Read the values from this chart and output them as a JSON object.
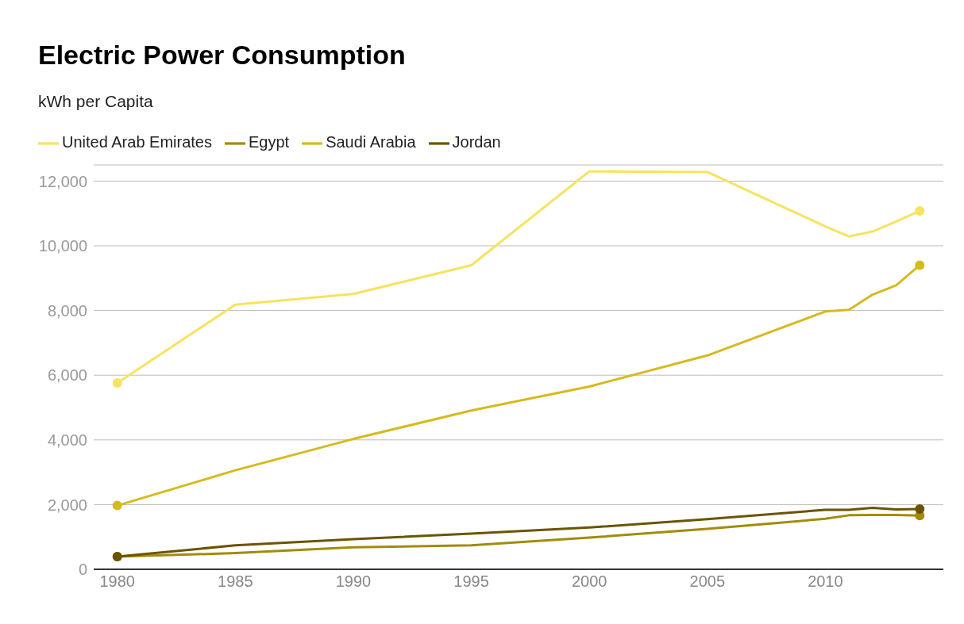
{
  "chart_data": {
    "type": "line",
    "title": "Electric Power Consumption",
    "subtitle": "kWh per Capita",
    "x": [
      1980,
      1985,
      1990,
      1995,
      2000,
      2005,
      2010,
      2011,
      2012,
      2013,
      2014
    ],
    "series": [
      {
        "name": "United Arab Emirates",
        "color": "#f6e35f",
        "values": [
          5760,
          8180,
          8510,
          9400,
          12300,
          12280,
          10600,
          10290,
          10440,
          10750,
          11080
        ]
      },
      {
        "name": "Egypt",
        "color": "#a38b0a",
        "values": [
          390,
          500,
          680,
          740,
          980,
          1250,
          1560,
          1670,
          1680,
          1680,
          1660
        ]
      },
      {
        "name": "Saudi Arabia",
        "color": "#d6ba1e",
        "values": [
          1970,
          3060,
          4030,
          4910,
          5650,
          6610,
          7970,
          8020,
          8490,
          8780,
          9400
        ]
      },
      {
        "name": "Jordan",
        "color": "#6b5400",
        "values": [
          390,
          740,
          930,
          1100,
          1290,
          1550,
          1840,
          1840,
          1900,
          1850,
          1860
        ]
      }
    ],
    "xlim": [
      1979,
      2015
    ],
    "xticks": [
      1980,
      1985,
      1990,
      1995,
      2000,
      2005,
      2010
    ],
    "ylim": [
      0,
      12500
    ],
    "yticks": [
      0,
      {
        "value": 2000,
        "label": "2,000"
      },
      {
        "value": 4000,
        "label": "4,000"
      },
      {
        "value": 6000,
        "label": "6,000"
      },
      {
        "value": 8000,
        "label": "8,000"
      },
      {
        "value": 10000,
        "label": "10,000"
      },
      {
        "value": 12000,
        "label": "12,000"
      }
    ],
    "grid": "y",
    "legend": "top left",
    "line_style": "solid"
  }
}
